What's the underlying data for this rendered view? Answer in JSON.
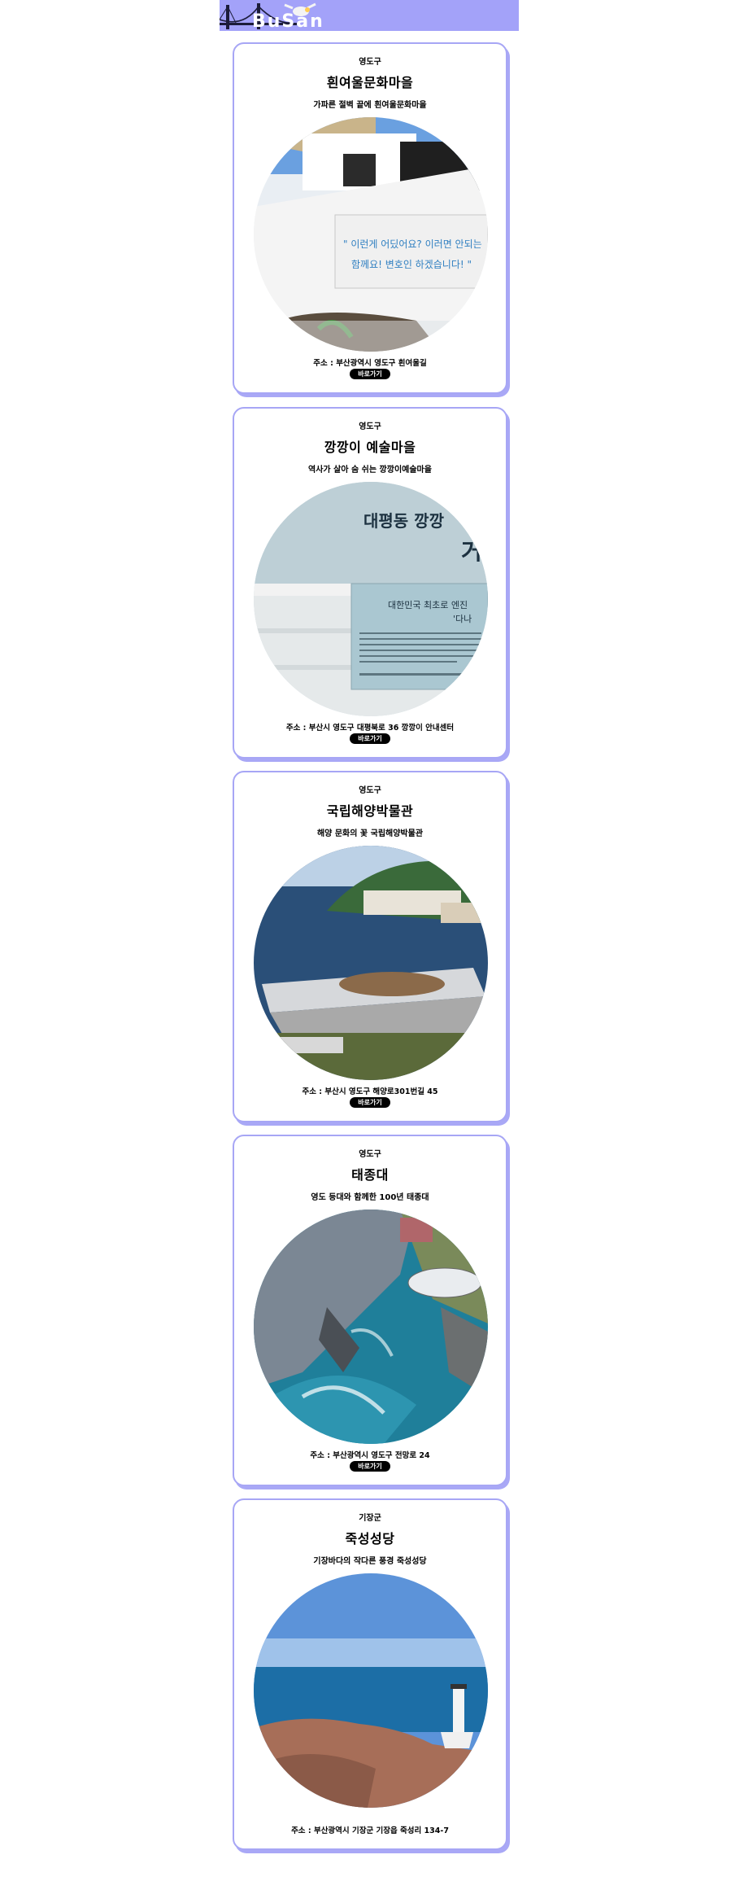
{
  "header": {
    "logo_text": "BuSan"
  },
  "cards": [
    {
      "district": "영도구",
      "title": "흰여울문화마을",
      "subtitle": "가파른 절벽 끝에 흰여울문화마을",
      "address": "주소 : 부산광역시 영도구 흰여울길",
      "button": "바로가기"
    },
    {
      "district": "영도구",
      "title": "깡깡이 예술마을",
      "subtitle": "역사가 살아 숨 쉬는 깡깡이예술마을",
      "address": "주소 : 부산시 영도구 대평북로 36 깡깡이 안내센터",
      "button": "바로가기"
    },
    {
      "district": "영도구",
      "title": "국립해양박물관",
      "subtitle": "해양 문화의 꽃 국립해양박물관",
      "address": "주소 : 부산시 영도구 해양로301번길 45",
      "button": "바로가기"
    },
    {
      "district": "영도구",
      "title": "태종대",
      "subtitle": "영도 등대와 함께한 100년 태종대",
      "address": "주소 : 부산광역시 영도구 전망로 24",
      "button": "바로가기"
    },
    {
      "district": "기장군",
      "title": "죽성성당",
      "subtitle": "기장바다의 작다른 풍경 죽성성당",
      "address": "주소 : 부산광역시 기장군 기장읍 죽성리 134-7"
    }
  ],
  "photo_texts": {
    "wall_line1": "\" 이런게 어딨어요? 이러면 안되는",
    "wall_line2": "함께요!   변호인 하겠습니다! \"",
    "sign_title1": "대평동 깡깡",
    "sign_title2": "거",
    "sign_sub1": "대한민국 최초로 엔진",
    "sign_sub2": "'다나"
  }
}
